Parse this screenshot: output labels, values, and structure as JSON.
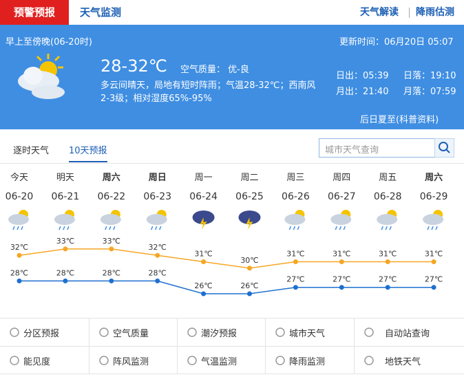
{
  "nav": {
    "tabs": [
      "预警预报",
      "天气监测"
    ],
    "links": [
      "天气解读",
      "降雨估测"
    ]
  },
  "today": {
    "period": "早上至傍晚(06-20时)",
    "update": "更新时间：06月20日 05:07",
    "temp": "28-32℃",
    "air_quality": "空气质量： 优-良",
    "description": [
      "多云间晴天，局地有短时阵雨；气温28-32℃；西南风",
      "2-3级；相对湿度65%-95%"
    ],
    "sun_moon": [
      "日出：05:39",
      "日落：19:10",
      "月出：21:40",
      "月落：07:59"
    ],
    "note": "后日夏至(科普资料)"
  },
  "forecast_tabs": [
    "逐时天气",
    "10天预报"
  ],
  "search_placeholder": "城市天气查询",
  "chart_data": {
    "type": "line",
    "categories": [
      "今天",
      "明天",
      "周六",
      "周日",
      "周一",
      "周二",
      "周三",
      "周四",
      "周五",
      "周六"
    ],
    "dates": [
      "06-20",
      "06-21",
      "06-22",
      "06-23",
      "06-24",
      "06-25",
      "06-26",
      "06-27",
      "06-28",
      "06-29"
    ],
    "series": [
      {
        "color": "#f5a623",
        "values": [
          32,
          33,
          33,
          32,
          31,
          30,
          31,
          31,
          31,
          31
        ],
        "value_labels": [
          "32℃",
          "33℃",
          "33℃",
          "32℃",
          "31℃",
          "30℃",
          "31℃",
          "31℃",
          "31℃",
          "31℃"
        ]
      },
      {
        "color": "#1e6fd0",
        "values": [
          28,
          28,
          28,
          28,
          26,
          26,
          27,
          27,
          27,
          27
        ],
        "value_labels": [
          "28℃",
          "28℃",
          "28℃",
          "28℃",
          "26℃",
          "26℃",
          "27℃",
          "27℃",
          "27℃",
          "27℃"
        ]
      }
    ]
  },
  "services": [
    "分区预报",
    "空气质量",
    "潮汐预报",
    "城市天气",
    "自动站查询",
    "能见度",
    "阵风监测",
    "气温监测",
    "降雨监测",
    "地铁天气"
  ]
}
